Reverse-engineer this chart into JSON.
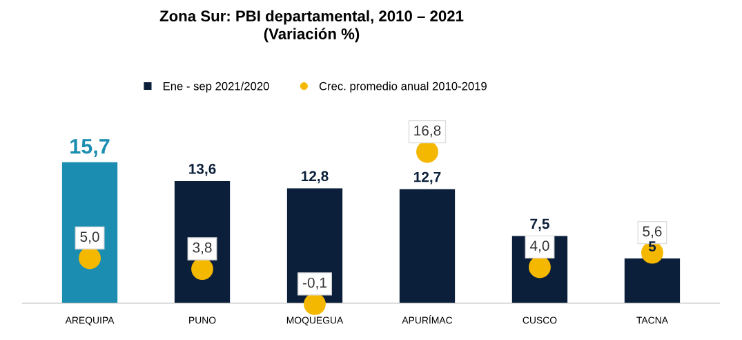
{
  "chart_data": {
    "type": "bar",
    "title": "Zona Sur: PBI departamental, 2010 – 2021\n(Variación %)",
    "categories": [
      "AREQUIPA",
      "PUNO",
      "MOQUEGUA",
      "APURÍMAC",
      "CUSCO",
      "TACNA"
    ],
    "legend": "top",
    "series": [
      {
        "name": "Ene - sep 2021/2020",
        "colors": [
          "#1a8db0",
          "#0b1f3a",
          "#0b1f3a",
          "#0b1f3a",
          "#0b1f3a",
          "#0b1f3a"
        ],
        "color": "#0b1f3a",
        "values": [
          15.7,
          13.6,
          12.8,
          12.7,
          7.5,
          5
        ],
        "value_labels": [
          "15,7",
          "13,6",
          "12,8",
          "12,7",
          "7,5",
          "5"
        ]
      },
      {
        "name": "Crec. promedio anual 2010-2019",
        "type": "scatter",
        "marker": "circle",
        "color": "#f5b800",
        "values": [
          5.0,
          3.8,
          -0.1,
          16.8,
          4.0,
          5.6
        ],
        "value_labels": [
          "5,0",
          "3,8",
          "-0,1",
          "16,8",
          "4,0",
          "5,6"
        ]
      }
    ]
  }
}
